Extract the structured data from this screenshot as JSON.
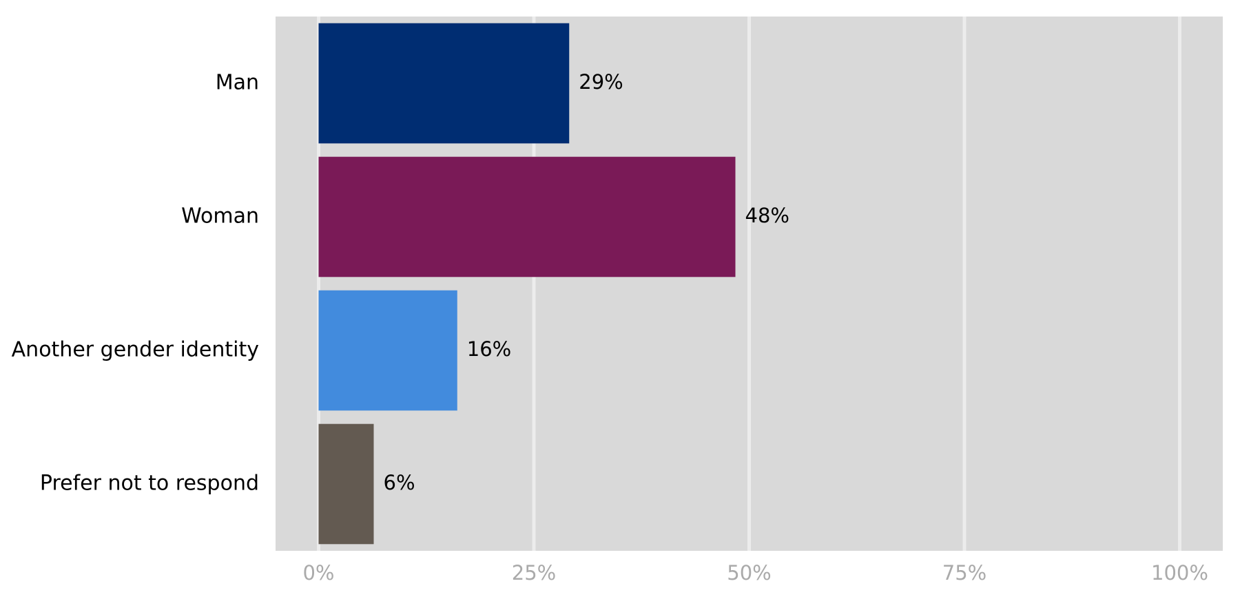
{
  "chart_data": {
    "type": "bar",
    "orientation": "horizontal",
    "categories": [
      "Man",
      "Woman",
      "Another gender identity",
      "Prefer not to respond"
    ],
    "values": [
      29.1,
      48.4,
      16.1,
      6.4
    ],
    "value_labels": [
      "29%",
      "48%",
      "16%",
      "6%"
    ],
    "colors": [
      "#002d72",
      "#7a1a57",
      "#428bdd",
      "#635a51"
    ],
    "xlim": [
      -5,
      105
    ],
    "xticks": [
      {
        "value": 0,
        "label": "0%"
      },
      {
        "value": 25,
        "label": "25%"
      },
      {
        "value": 50,
        "label": "50%"
      },
      {
        "value": 75,
        "label": "75%"
      },
      {
        "value": 100,
        "label": "100%"
      }
    ],
    "grid": true
  }
}
